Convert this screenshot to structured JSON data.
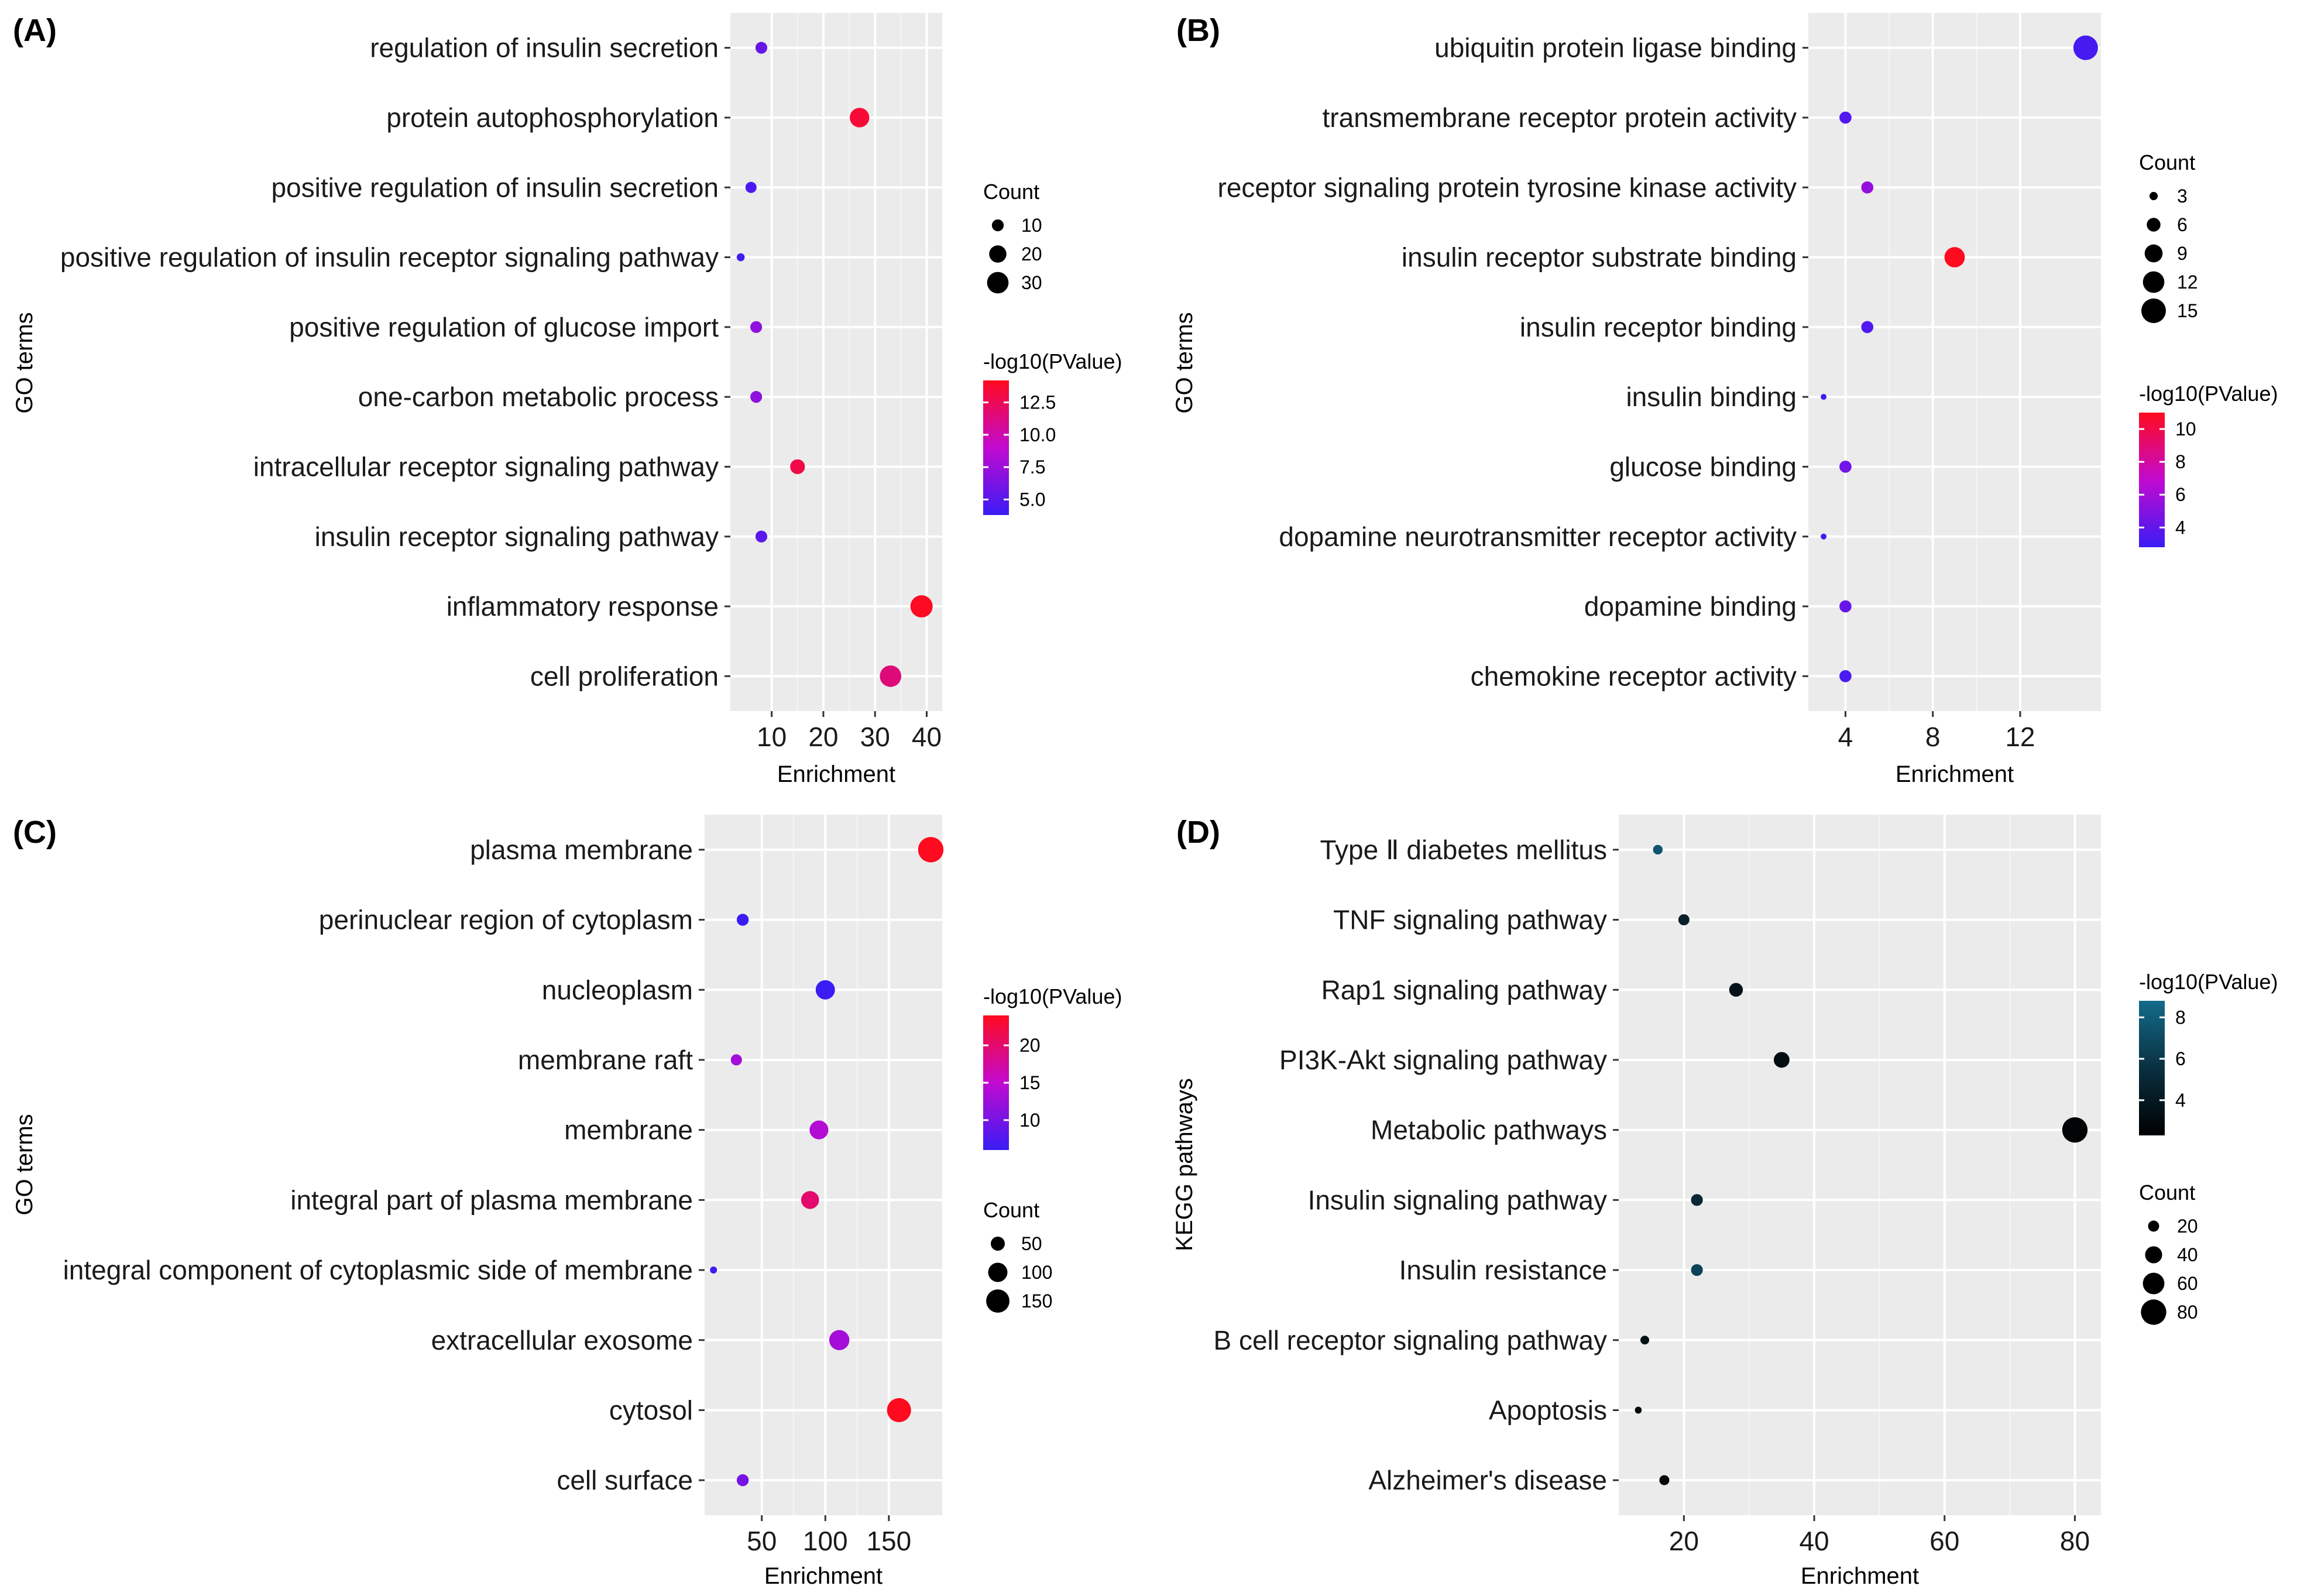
{
  "chart_data": [
    {
      "panel": "(A)",
      "type": "scatter",
      "xlabel": "Enrichment",
      "ylabel": "GO terms",
      "xticks": [
        10,
        20,
        30,
        40
      ],
      "xlim": [
        2,
        43
      ],
      "categories": [
        "regulation of insulin secretion",
        "protein autophosphorylation",
        "positive regulation of insulin secretion",
        "positive regulation of insulin receptor signaling pathway",
        "positive regulation of glucose import",
        "one-carbon metabolic process",
        "intracellular receptor signaling pathway",
        "insulin receptor signaling pathway",
        "inflammatory response",
        "cell proliferation"
      ],
      "x": [
        8,
        27,
        6,
        4,
        7,
        7,
        15,
        8,
        39,
        33
      ],
      "count": [
        10,
        25,
        9,
        5,
        10,
        10,
        15,
        10,
        32,
        30
      ],
      "neg_log10_p": [
        5.5,
        13.5,
        4.5,
        4.0,
        7.0,
        7.0,
        13.0,
        5.0,
        14.0,
        11.5
      ],
      "size_legend": {
        "title": "Count",
        "values": [
          10,
          20,
          30
        ],
        "range": [
          3,
          32
        ]
      },
      "color_legend": {
        "title": "-log10(PValue)",
        "ticks": [
          5.0,
          7.5,
          10.0,
          12.5
        ],
        "tick_labels": [
          "5.0",
          "7.5",
          "10.0",
          "12.5"
        ],
        "range": [
          3.8,
          14.2
        ],
        "low": "#3a1cf5",
        "mid": "#c20ad0",
        "high": "#ff0a1e"
      }
    },
    {
      "panel": "(B)",
      "type": "scatter",
      "xlabel": "Enrichment",
      "ylabel": "GO terms",
      "xticks": [
        4,
        8,
        12
      ],
      "xlim": [
        2.3,
        15.7
      ],
      "categories": [
        "ubiquitin protein ligase binding",
        "transmembrane receptor protein activity",
        "receptor signaling protein tyrosine kinase activity",
        "insulin receptor substrate binding",
        "insulin receptor binding",
        "insulin binding",
        "glucose binding",
        "dopamine neurotransmitter receptor activity",
        "dopamine binding",
        "chemokine receptor activity"
      ],
      "x": [
        15,
        4,
        5,
        9,
        5,
        3,
        4,
        3,
        4,
        4
      ],
      "count": [
        15,
        5,
        5,
        11,
        5,
        2,
        5,
        2,
        5,
        5
      ],
      "neg_log10_p": [
        3.2,
        3.5,
        5.5,
        11.0,
        3.5,
        3.0,
        4.5,
        3.0,
        4.2,
        3.3
      ],
      "size_legend": {
        "title": "Count",
        "values": [
          3,
          6,
          9,
          12,
          15
        ],
        "range": [
          2,
          15
        ]
      },
      "color_legend": {
        "title": "-log10(PValue)",
        "ticks": [
          4,
          6,
          8,
          10
        ],
        "tick_labels": [
          "4",
          "6",
          "8",
          "10"
        ],
        "range": [
          2.8,
          11.0
        ],
        "low": "#3a1cf5",
        "mid": "#c20ad0",
        "high": "#ff0a1e"
      }
    },
    {
      "panel": "(C)",
      "type": "scatter",
      "xlabel": "Enrichment",
      "ylabel": "GO terms",
      "xticks": [
        50,
        100,
        150
      ],
      "xlim": [
        5,
        192
      ],
      "categories": [
        "plasma membrane",
        "perinuclear region of cytoplasm",
        "nucleoplasm",
        "membrane raft",
        "membrane",
        "integral part of plasma membrane",
        "integral component of cytoplasmic side of membrane",
        "extracellular exosome",
        "cytosol",
        "cell surface"
      ],
      "x": [
        183,
        35,
        100,
        30,
        95,
        88,
        12,
        111,
        158,
        35
      ],
      "count": [
        180,
        35,
        100,
        30,
        95,
        85,
        10,
        110,
        160,
        35
      ],
      "neg_log10_p": [
        24,
        6,
        5,
        13,
        14,
        20,
        5,
        13,
        24,
        10
      ],
      "size_legend": {
        "title": "Count",
        "values": [
          50,
          100,
          150
        ],
        "range": [
          10,
          185
        ]
      },
      "color_legend": {
        "title": "-log10(PValue)",
        "ticks": [
          10,
          15,
          20
        ],
        "tick_labels": [
          "10",
          "15",
          "20"
        ],
        "range": [
          6,
          24
        ],
        "low": "#3a1cf5",
        "mid": "#c20ad0",
        "high": "#ff0a1e"
      }
    },
    {
      "panel": "(D)",
      "type": "scatter",
      "xlabel": "Enrichment",
      "ylabel": "KEGG pathways",
      "xticks": [
        20,
        40,
        60,
        80
      ],
      "xlim": [
        10,
        84
      ],
      "categories": [
        "Type Ⅱ diabetes mellitus",
        "TNF signaling pathway",
        "Rap1 signaling pathway",
        "PI3K-Akt signaling pathway",
        "Metabolic pathways",
        "Insulin signaling pathway",
        "Insulin resistance",
        "B cell receptor signaling pathway",
        "Apoptosis",
        "Alzheimer's disease"
      ],
      "x": [
        16,
        20,
        28,
        35,
        80,
        22,
        22,
        14,
        13,
        17
      ],
      "count": [
        16,
        20,
        28,
        35,
        80,
        22,
        22,
        14,
        10,
        17
      ],
      "neg_log10_p": [
        7.5,
        4.5,
        3.5,
        3.2,
        2.5,
        5.0,
        6.5,
        3.5,
        3.0,
        3.0
      ],
      "size_legend": {
        "title": "Count",
        "values": [
          20,
          40,
          60,
          80
        ],
        "range": [
          8,
          82
        ]
      },
      "color_legend": {
        "title": "-log10(PValue)",
        "ticks": [
          4,
          6,
          8
        ],
        "tick_labels": [
          "4",
          "6",
          "8"
        ],
        "range": [
          2.3,
          8.8
        ],
        "low": "#000000",
        "mid": "#0a3040",
        "high": "#136b8a"
      }
    }
  ]
}
